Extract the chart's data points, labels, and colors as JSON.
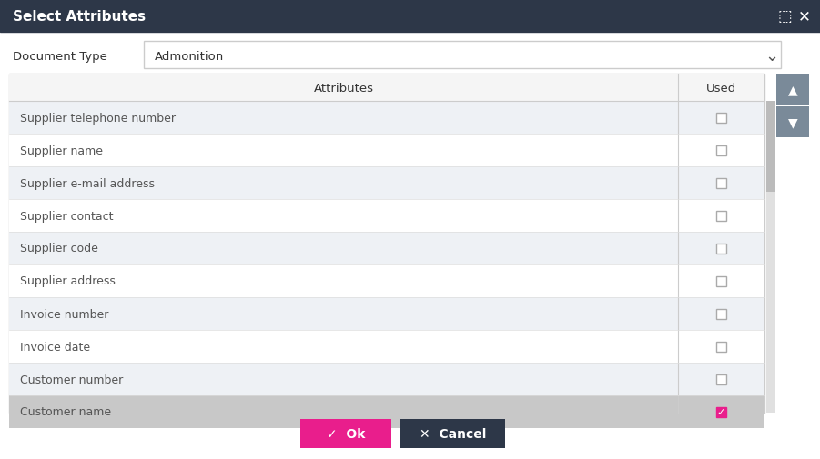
{
  "title": "Select Attributes",
  "title_bg": "#2d3748",
  "title_color": "#ffffff",
  "title_fontsize": 11,
  "doc_label": "Document Type",
  "doc_value": "Admonition",
  "col1_header": "Attributes",
  "col2_header": "Used",
  "rows": [
    {
      "label": "Supplier telephone number",
      "checked": false,
      "highlighted": true
    },
    {
      "label": "Supplier name",
      "checked": false,
      "highlighted": false
    },
    {
      "label": "Supplier e-mail address",
      "checked": false,
      "highlighted": true
    },
    {
      "label": "Supplier contact",
      "checked": false,
      "highlighted": false
    },
    {
      "label": "Supplier code",
      "checked": false,
      "highlighted": true
    },
    {
      "label": "Supplier address",
      "checked": false,
      "highlighted": false
    },
    {
      "label": "Invoice number",
      "checked": false,
      "highlighted": true
    },
    {
      "label": "Invoice date",
      "checked": false,
      "highlighted": false
    },
    {
      "label": "Customer number",
      "checked": false,
      "highlighted": true
    },
    {
      "label": "Customer name",
      "checked": true,
      "highlighted": false,
      "selected": true
    }
  ],
  "bg_color": "#ffffff",
  "outer_bg": "#f0f0f0",
  "row_odd_bg": "#eef1f5",
  "row_even_bg": "#ffffff",
  "row_selected_bg": "#c8c8c8",
  "header_bg": "#f5f5f5",
  "header_border": "#cccccc",
  "table_border": "#cccccc",
  "up_btn_color": "#7a8a99",
  "down_btn_color": "#7a8a99",
  "ok_btn_color": "#e91e8c",
  "ok_btn_text": "Ok",
  "cancel_btn_color": "#2d3748",
  "cancel_btn_text": "Cancel",
  "checkbox_color": "#e91e8c",
  "checkbox_unchecked": "#ffffff",
  "scrollbar_color": "#bbbbbb",
  "text_color": "#555555",
  "row_text_fontsize": 9,
  "dropdown_border": "#cccccc"
}
